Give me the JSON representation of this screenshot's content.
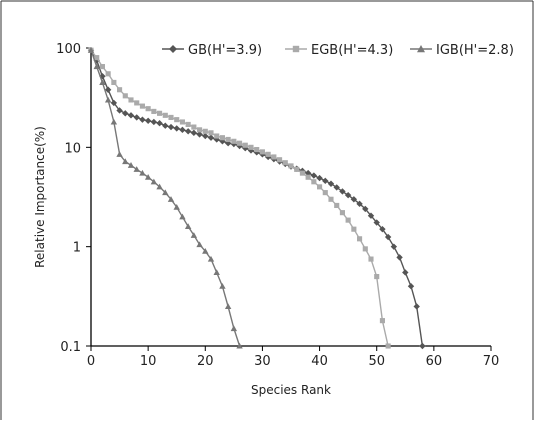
{
  "chart_data": {
    "type": "line",
    "title": "",
    "xlabel": "Species Rank",
    "ylabel": "Relative Importance(%)",
    "xlim": [
      0,
      70
    ],
    "ylim": [
      0.1,
      100
    ],
    "yscale": "log",
    "grid": false,
    "legend_position": "top-right",
    "xticks": [
      0,
      10,
      20,
      30,
      40,
      50,
      60,
      70
    ],
    "yticks": [
      0.1,
      1,
      10,
      100
    ],
    "xtick_labels": [
      "0",
      "10",
      "20",
      "30",
      "40",
      "50",
      "60",
      "70"
    ],
    "ytick_labels": [
      "0.1",
      "1",
      "10",
      "100"
    ],
    "series": [
      {
        "name": "GB(H'=3.9)",
        "color": "#555555",
        "marker": "diamond",
        "x": [
          0,
          1,
          2,
          3,
          4,
          5,
          6,
          7,
          8,
          9,
          10,
          11,
          12,
          13,
          14,
          15,
          16,
          17,
          18,
          19,
          20,
          21,
          22,
          23,
          24,
          25,
          26,
          27,
          28,
          29,
          30,
          31,
          32,
          33,
          34,
          35,
          36,
          37,
          38,
          39,
          40,
          41,
          42,
          43,
          44,
          45,
          46,
          47,
          48,
          49,
          50,
          51,
          52,
          53,
          54,
          55,
          56,
          57,
          58
        ],
        "y": [
          95,
          75,
          52,
          38,
          28,
          23.5,
          22,
          21,
          20,
          19,
          18.5,
          18,
          17.5,
          16.5,
          16,
          15.5,
          15,
          14.5,
          14,
          13.5,
          13,
          12.5,
          12,
          11.5,
          11,
          10.8,
          10.3,
          9.8,
          9.3,
          8.9,
          8.5,
          8,
          7.6,
          7.2,
          6.8,
          6.4,
          6.1,
          5.8,
          5.5,
          5.2,
          4.9,
          4.6,
          4.3,
          3.95,
          3.6,
          3.3,
          3.0,
          2.7,
          2.4,
          2.05,
          1.75,
          1.5,
          1.25,
          1.0,
          0.78,
          0.55,
          0.4,
          0.25,
          0.1
        ]
      },
      {
        "name": "EGB(H'=4.3)",
        "color": "#aaaaaa",
        "marker": "square",
        "x": [
          0,
          1,
          2,
          3,
          4,
          5,
          6,
          7,
          8,
          9,
          10,
          11,
          12,
          13,
          14,
          15,
          16,
          17,
          18,
          19,
          20,
          21,
          22,
          23,
          24,
          25,
          26,
          27,
          28,
          29,
          30,
          31,
          32,
          33,
          34,
          35,
          36,
          37,
          38,
          39,
          40,
          41,
          42,
          43,
          44,
          45,
          46,
          47,
          48,
          49,
          50,
          51,
          52
        ],
        "y": [
          95,
          80,
          65,
          55,
          45,
          38,
          33,
          30,
          28,
          26,
          24.5,
          23,
          22,
          21,
          20,
          19,
          18,
          17,
          16,
          15,
          14.5,
          14,
          13,
          12.5,
          12,
          11.5,
          11,
          10.5,
          10,
          9.5,
          9,
          8.5,
          8,
          7.5,
          7,
          6.5,
          6,
          5.5,
          5,
          4.5,
          4,
          3.5,
          3,
          2.6,
          2.2,
          1.85,
          1.5,
          1.2,
          0.95,
          0.75,
          0.5,
          0.18,
          0.1
        ]
      },
      {
        "name": "IGB(H'=2.8)",
        "color": "#777777",
        "marker": "triangle",
        "x": [
          0,
          1,
          2,
          3,
          4,
          5,
          6,
          7,
          8,
          9,
          10,
          11,
          12,
          13,
          14,
          15,
          16,
          17,
          18,
          19,
          20,
          21,
          22,
          23,
          24,
          25,
          26
        ],
        "y": [
          95,
          65,
          45,
          30,
          18,
          8.5,
          7.2,
          6.6,
          6,
          5.5,
          5,
          4.5,
          4,
          3.5,
          3,
          2.5,
          2,
          1.6,
          1.3,
          1.05,
          0.9,
          0.75,
          0.55,
          0.4,
          0.25,
          0.15,
          0.1
        ]
      }
    ]
  }
}
